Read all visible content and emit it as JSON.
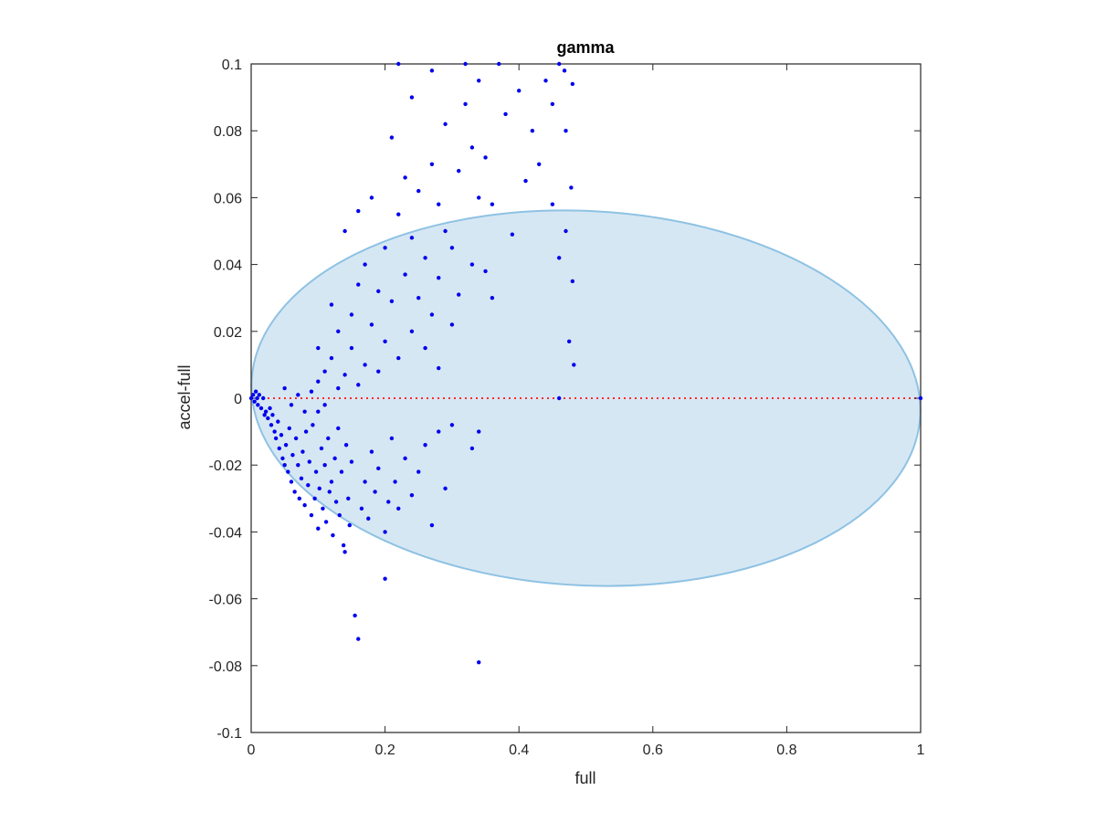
{
  "chart_data": {
    "type": "scatter",
    "title": "gamma",
    "xlabel": "full",
    "ylabel": "accel-full",
    "xlim": [
      0,
      1
    ],
    "ylim": [
      -0.1,
      0.1
    ],
    "xticks": [
      0,
      0.2,
      0.4,
      0.6,
      0.8,
      1
    ],
    "xtick_labels": [
      "0",
      "0.2",
      "0.4",
      "0.6",
      "0.8",
      "1"
    ],
    "yticks": [
      -0.1,
      -0.08,
      -0.06,
      -0.04,
      -0.02,
      0,
      0.02,
      0.04,
      0.06,
      0.08,
      0.1
    ],
    "ytick_labels": [
      "-0.1",
      "-0.08",
      "-0.06",
      "-0.04",
      "-0.02",
      "0",
      "0.02",
      "0.04",
      "0.06",
      "0.08",
      "0.1"
    ],
    "grid": false,
    "colors": {
      "points": "#0000ee",
      "ellipse_fill": "#d6e7f4",
      "ellipse_edge": "#8ec2e3",
      "zero_line": "#ff2a2a",
      "axis": "#262626"
    },
    "ellipse": {
      "x_min": 0.0,
      "x_max": 1.0,
      "y_min": -0.056,
      "y_max": 0.056,
      "tilt_deg": 3
    },
    "reference_line": {
      "y": 0,
      "x_range": [
        0,
        1
      ],
      "style": "dotted"
    },
    "points": [
      [
        0.0,
        0.0
      ],
      [
        0.003,
        0.001
      ],
      [
        0.005,
        -0.001
      ],
      [
        0.007,
        0.002
      ],
      [
        0.009,
        0.0
      ],
      [
        0.01,
        -0.002
      ],
      [
        0.012,
        0.001
      ],
      [
        0.015,
        -0.003
      ],
      [
        0.018,
        0.0
      ],
      [
        0.02,
        -0.005
      ],
      [
        0.022,
        -0.004
      ],
      [
        0.025,
        -0.006
      ],
      [
        0.028,
        -0.003
      ],
      [
        0.03,
        -0.008
      ],
      [
        0.032,
        -0.005
      ],
      [
        0.035,
        -0.01
      ],
      [
        0.037,
        -0.012
      ],
      [
        0.04,
        -0.007
      ],
      [
        0.042,
        -0.015
      ],
      [
        0.045,
        -0.011
      ],
      [
        0.047,
        -0.018
      ],
      [
        0.05,
        -0.02
      ],
      [
        0.052,
        -0.014
      ],
      [
        0.055,
        -0.022
      ],
      [
        0.057,
        -0.009
      ],
      [
        0.06,
        -0.025
      ],
      [
        0.062,
        -0.017
      ],
      [
        0.065,
        -0.028
      ],
      [
        0.067,
        -0.012
      ],
      [
        0.07,
        -0.02
      ],
      [
        0.072,
        -0.03
      ],
      [
        0.075,
        -0.024
      ],
      [
        0.077,
        -0.016
      ],
      [
        0.08,
        -0.032
      ],
      [
        0.082,
        -0.01
      ],
      [
        0.085,
        -0.026
      ],
      [
        0.087,
        -0.019
      ],
      [
        0.09,
        -0.035
      ],
      [
        0.092,
        -0.008
      ],
      [
        0.095,
        -0.03
      ],
      [
        0.097,
        -0.022
      ],
      [
        0.1,
        -0.039
      ],
      [
        0.1,
        -0.004
      ],
      [
        0.102,
        -0.027
      ],
      [
        0.105,
        -0.015
      ],
      [
        0.107,
        -0.033
      ],
      [
        0.11,
        -0.02
      ],
      [
        0.112,
        -0.037
      ],
      [
        0.115,
        -0.012
      ],
      [
        0.117,
        -0.028
      ],
      [
        0.12,
        -0.025
      ],
      [
        0.122,
        -0.041
      ],
      [
        0.125,
        -0.018
      ],
      [
        0.127,
        -0.031
      ],
      [
        0.13,
        -0.009
      ],
      [
        0.132,
        -0.035
      ],
      [
        0.135,
        -0.022
      ],
      [
        0.138,
        -0.044
      ],
      [
        0.14,
        -0.046
      ],
      [
        0.142,
        -0.014
      ],
      [
        0.145,
        -0.03
      ],
      [
        0.147,
        -0.038
      ],
      [
        0.15,
        -0.019
      ],
      [
        0.155,
        -0.065
      ],
      [
        0.16,
        -0.072
      ],
      [
        0.165,
        -0.033
      ],
      [
        0.17,
        -0.025
      ],
      [
        0.175,
        -0.036
      ],
      [
        0.18,
        -0.016
      ],
      [
        0.185,
        -0.028
      ],
      [
        0.19,
        -0.021
      ],
      [
        0.2,
        -0.054
      ],
      [
        0.2,
        -0.04
      ],
      [
        0.205,
        -0.031
      ],
      [
        0.21,
        -0.012
      ],
      [
        0.215,
        -0.025
      ],
      [
        0.22,
        -0.033
      ],
      [
        0.23,
        -0.018
      ],
      [
        0.24,
        -0.029
      ],
      [
        0.25,
        -0.022
      ],
      [
        0.26,
        -0.014
      ],
      [
        0.27,
        -0.038
      ],
      [
        0.28,
        -0.01
      ],
      [
        0.29,
        -0.027
      ],
      [
        0.3,
        -0.008
      ],
      [
        0.33,
        -0.015
      ],
      [
        0.34,
        -0.079
      ],
      [
        0.34,
        -0.01
      ],
      [
        0.46,
        0.0
      ],
      [
        1.0,
        0.0
      ],
      [
        0.05,
        0.003
      ],
      [
        0.06,
        -0.002
      ],
      [
        0.07,
        0.001
      ],
      [
        0.08,
        -0.004
      ],
      [
        0.09,
        0.002
      ],
      [
        0.1,
        0.005
      ],
      [
        0.1,
        0.015
      ],
      [
        0.11,
        -0.002
      ],
      [
        0.11,
        0.008
      ],
      [
        0.12,
        0.012
      ],
      [
        0.12,
        0.028
      ],
      [
        0.13,
        0.003
      ],
      [
        0.13,
        0.02
      ],
      [
        0.14,
        0.007
      ],
      [
        0.14,
        0.05
      ],
      [
        0.15,
        0.015
      ],
      [
        0.15,
        0.025
      ],
      [
        0.16,
        0.004
      ],
      [
        0.16,
        0.034
      ],
      [
        0.16,
        0.056
      ],
      [
        0.17,
        0.01
      ],
      [
        0.17,
        0.04
      ],
      [
        0.18,
        0.022
      ],
      [
        0.18,
        0.06
      ],
      [
        0.19,
        0.008
      ],
      [
        0.19,
        0.032
      ],
      [
        0.2,
        0.017
      ],
      [
        0.2,
        0.045
      ],
      [
        0.21,
        0.029
      ],
      [
        0.21,
        0.078
      ],
      [
        0.22,
        0.012
      ],
      [
        0.22,
        0.055
      ],
      [
        0.22,
        0.1
      ],
      [
        0.23,
        0.037
      ],
      [
        0.23,
        0.066
      ],
      [
        0.24,
        0.02
      ],
      [
        0.24,
        0.048
      ],
      [
        0.24,
        0.09
      ],
      [
        0.25,
        0.03
      ],
      [
        0.25,
        0.062
      ],
      [
        0.26,
        0.015
      ],
      [
        0.26,
        0.042
      ],
      [
        0.27,
        0.025
      ],
      [
        0.27,
        0.07
      ],
      [
        0.27,
        0.098
      ],
      [
        0.28,
        0.009
      ],
      [
        0.28,
        0.036
      ],
      [
        0.28,
        0.058
      ],
      [
        0.29,
        0.05
      ],
      [
        0.29,
        0.082
      ],
      [
        0.3,
        0.022
      ],
      [
        0.3,
        0.045
      ],
      [
        0.31,
        0.031
      ],
      [
        0.31,
        0.068
      ],
      [
        0.32,
        0.1
      ],
      [
        0.32,
        0.088
      ],
      [
        0.33,
        0.04
      ],
      [
        0.33,
        0.075
      ],
      [
        0.34,
        0.06
      ],
      [
        0.34,
        0.095
      ],
      [
        0.35,
        0.038
      ],
      [
        0.35,
        0.072
      ],
      [
        0.36,
        0.03
      ],
      [
        0.36,
        0.058
      ],
      [
        0.37,
        0.1
      ],
      [
        0.38,
        0.085
      ],
      [
        0.39,
        0.049
      ],
      [
        0.4,
        0.092
      ],
      [
        0.41,
        0.065
      ],
      [
        0.42,
        0.08
      ],
      [
        0.43,
        0.07
      ],
      [
        0.44,
        0.095
      ],
      [
        0.45,
        0.058
      ],
      [
        0.45,
        0.088
      ],
      [
        0.46,
        0.042
      ],
      [
        0.46,
        0.1
      ],
      [
        0.47,
        0.05
      ],
      [
        0.47,
        0.08
      ],
      [
        0.475,
        0.017
      ],
      [
        0.48,
        0.035
      ],
      [
        0.48,
        0.094
      ],
      [
        0.482,
        0.01
      ],
      [
        0.478,
        0.063
      ],
      [
        0.468,
        0.098
      ]
    ]
  }
}
